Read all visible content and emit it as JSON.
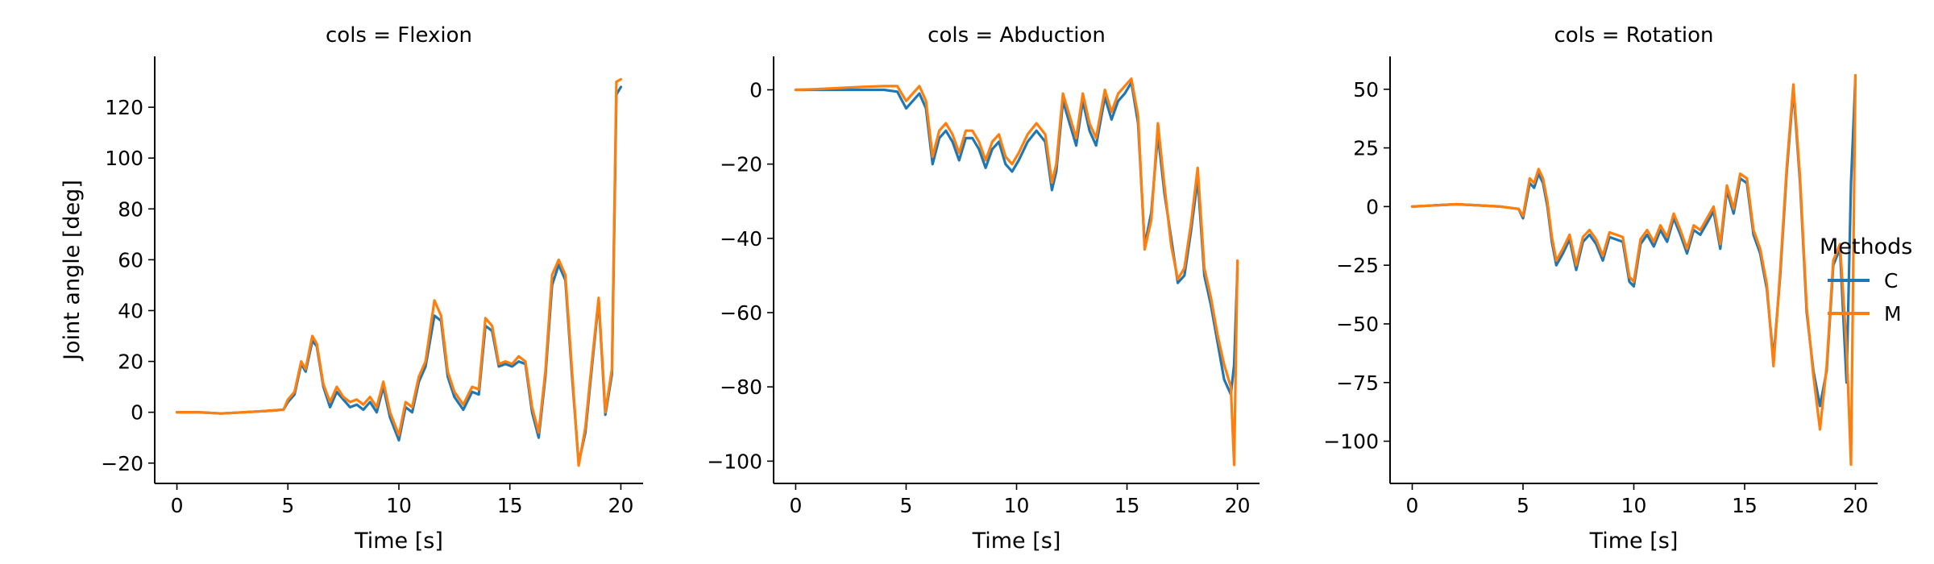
{
  "figure": {
    "legend_title": "Methods"
  },
  "chart_data": [
    {
      "type": "line",
      "title": "cols = Flexion",
      "xlabel": "Time [s]",
      "ylabel": "Joint angle [deg]",
      "xlim": [
        -1,
        21
      ],
      "ylim": [
        -28,
        140
      ],
      "xticks": [
        0,
        5,
        10,
        15,
        20
      ],
      "yticks": [
        -20,
        0,
        20,
        40,
        60,
        80,
        100,
        120
      ],
      "grid": false,
      "series": [
        {
          "name": "C",
          "color": "#1f77b4",
          "x": [
            0,
            1,
            2,
            3,
            4,
            4.8,
            5.0,
            5.3,
            5.6,
            5.8,
            6.1,
            6.3,
            6.6,
            6.9,
            7.2,
            7.5,
            7.8,
            8.1,
            8.4,
            8.7,
            9.0,
            9.3,
            9.6,
            10.0,
            10.3,
            10.6,
            10.9,
            11.2,
            11.6,
            11.9,
            12.2,
            12.5,
            12.9,
            13.3,
            13.6,
            13.9,
            14.2,
            14.5,
            14.8,
            15.1,
            15.4,
            15.7,
            16.0,
            16.3,
            16.6,
            16.9,
            17.2,
            17.5,
            17.8,
            18.1,
            18.4,
            18.7,
            19.0,
            19.3,
            19.6,
            19.8,
            20.0
          ],
          "values": [
            0,
            0,
            -0.5,
            0,
            0.5,
            1,
            4,
            7,
            19,
            16,
            28,
            26,
            10,
            2,
            8,
            5,
            2,
            3,
            1,
            4,
            0,
            10,
            -2,
            -11,
            2,
            0,
            12,
            18,
            38,
            36,
            14,
            6,
            1,
            8,
            7,
            34,
            32,
            18,
            19,
            18,
            20,
            19,
            0,
            -10,
            14,
            50,
            58,
            52,
            14,
            -20,
            -8,
            18,
            44,
            -1,
            15,
            125,
            128
          ]
        },
        {
          "name": "M",
          "color": "#ff7f0e",
          "x": [
            0,
            1,
            2,
            3,
            4,
            4.8,
            5.0,
            5.3,
            5.6,
            5.8,
            6.1,
            6.3,
            6.6,
            6.9,
            7.2,
            7.5,
            7.8,
            8.1,
            8.4,
            8.7,
            9.0,
            9.3,
            9.6,
            10.0,
            10.3,
            10.6,
            10.9,
            11.2,
            11.6,
            11.9,
            12.2,
            12.5,
            12.9,
            13.3,
            13.6,
            13.9,
            14.2,
            14.5,
            14.8,
            15.1,
            15.4,
            15.7,
            16.0,
            16.3,
            16.6,
            16.9,
            17.2,
            17.5,
            17.8,
            18.1,
            18.4,
            18.7,
            19.0,
            19.3,
            19.6,
            19.8,
            20.0
          ],
          "values": [
            0,
            0,
            -0.5,
            0,
            0.5,
            1,
            5,
            8,
            20,
            17,
            30,
            27,
            11,
            4,
            10,
            6,
            4,
            5,
            3,
            6,
            2,
            12,
            0,
            -9,
            4,
            2,
            14,
            20,
            44,
            38,
            16,
            8,
            3,
            10,
            9,
            37,
            34,
            19,
            20,
            19,
            22,
            20,
            2,
            -8,
            16,
            54,
            60,
            54,
            16,
            -21,
            -6,
            20,
            45,
            0,
            17,
            130,
            131
          ]
        }
      ]
    },
    {
      "type": "line",
      "title": "cols = Abduction",
      "xlabel": "Time [s]",
      "ylabel": "",
      "xlim": [
        -1,
        21
      ],
      "ylim": [
        -106,
        9
      ],
      "xticks": [
        0,
        5,
        10,
        15,
        20
      ],
      "yticks": [
        -100,
        -80,
        -60,
        -40,
        -20,
        0
      ],
      "grid": false,
      "series": [
        {
          "name": "C",
          "color": "#1f77b4",
          "x": [
            0,
            1,
            2,
            3,
            4,
            4.6,
            5.0,
            5.3,
            5.6,
            5.9,
            6.2,
            6.5,
            6.8,
            7.1,
            7.4,
            7.7,
            8.0,
            8.3,
            8.6,
            8.9,
            9.2,
            9.5,
            9.8,
            10.1,
            10.5,
            10.9,
            11.3,
            11.6,
            11.8,
            12.1,
            12.4,
            12.7,
            13.0,
            13.3,
            13.6,
            14.0,
            14.3,
            14.6,
            14.9,
            15.2,
            15.5,
            15.8,
            16.1,
            16.4,
            16.7,
            17.0,
            17.3,
            17.6,
            17.9,
            18.2,
            18.5,
            18.8,
            19.1,
            19.4,
            19.7,
            19.85,
            20.0
          ],
          "values": [
            0,
            0,
            0,
            0,
            0,
            -0.5,
            -5,
            -3,
            -1,
            -5,
            -20,
            -13,
            -11,
            -14,
            -19,
            -13,
            -13,
            -16,
            -21,
            -16,
            -14,
            -20,
            -22,
            -19,
            -14,
            -11,
            -14,
            -27,
            -22,
            -3,
            -9,
            -15,
            -3,
            -11,
            -15,
            -2,
            -8,
            -3,
            -1,
            2,
            -9,
            -42,
            -33,
            -12,
            -28,
            -40,
            -52,
            -50,
            -38,
            -24,
            -50,
            -58,
            -68,
            -78,
            -82,
            -74,
            -48
          ]
        },
        {
          "name": "M",
          "color": "#ff7f0e",
          "x": [
            0,
            1,
            2,
            3,
            4,
            4.6,
            5.0,
            5.3,
            5.6,
            5.9,
            6.2,
            6.5,
            6.8,
            7.1,
            7.4,
            7.7,
            8.0,
            8.3,
            8.6,
            8.9,
            9.2,
            9.5,
            9.8,
            10.1,
            10.5,
            10.9,
            11.3,
            11.6,
            11.8,
            12.1,
            12.4,
            12.7,
            13.0,
            13.3,
            13.6,
            14.0,
            14.3,
            14.6,
            14.9,
            15.2,
            15.5,
            15.8,
            16.1,
            16.4,
            16.7,
            17.0,
            17.3,
            17.6,
            17.9,
            18.2,
            18.5,
            18.8,
            19.1,
            19.4,
            19.7,
            19.85,
            20.0
          ],
          "values": [
            0,
            0.2,
            0.5,
            0.8,
            1,
            1,
            -3,
            -1,
            1,
            -3,
            -18,
            -11,
            -9,
            -12,
            -17,
            -11,
            -11,
            -14,
            -19,
            -14,
            -12,
            -18,
            -20,
            -17,
            -12,
            -9,
            -12,
            -25,
            -20,
            -1,
            -7,
            -13,
            -1,
            -9,
            -13,
            0,
            -6,
            -1,
            1,
            3,
            -7,
            -43,
            -35,
            -9,
            -26,
            -42,
            -51,
            -48,
            -36,
            -21,
            -48,
            -56,
            -66,
            -74,
            -80,
            -101,
            -46
          ]
        }
      ]
    },
    {
      "type": "line",
      "title": "cols = Rotation",
      "xlabel": "Time [s]",
      "ylabel": "",
      "xlim": [
        -1,
        21
      ],
      "ylim": [
        -118,
        64
      ],
      "xticks": [
        0,
        5,
        10,
        15,
        20
      ],
      "yticks": [
        -100,
        -75,
        -50,
        -25,
        0,
        25,
        50
      ],
      "grid": false,
      "series": [
        {
          "name": "C",
          "color": "#1f77b4",
          "x": [
            0,
            1,
            2,
            3,
            4,
            4.8,
            5.0,
            5.3,
            5.5,
            5.7,
            5.9,
            6.1,
            6.3,
            6.5,
            6.8,
            7.1,
            7.4,
            7.7,
            8.0,
            8.3,
            8.6,
            8.9,
            9.2,
            9.5,
            9.8,
            10.0,
            10.3,
            10.6,
            10.9,
            11.2,
            11.5,
            11.8,
            12.1,
            12.4,
            12.7,
            13.0,
            13.3,
            13.6,
            13.9,
            14.2,
            14.5,
            14.8,
            15.1,
            15.4,
            15.7,
            16.0,
            16.3,
            16.6,
            16.9,
            17.2,
            17.5,
            17.8,
            18.1,
            18.4,
            18.7,
            19.0,
            19.3,
            19.6,
            19.8,
            20.0
          ],
          "values": [
            0,
            0.5,
            1,
            0.5,
            0,
            -1,
            -5,
            10,
            8,
            14,
            10,
            0,
            -15,
            -25,
            -20,
            -14,
            -27,
            -15,
            -12,
            -16,
            -23,
            -13,
            -14,
            -15,
            -32,
            -34,
            -16,
            -12,
            -17,
            -10,
            -15,
            -5,
            -12,
            -20,
            -10,
            -12,
            -7,
            -2,
            -18,
            7,
            -3,
            12,
            10,
            -12,
            -20,
            -35,
            -65,
            -30,
            15,
            50,
            10,
            -45,
            -70,
            -85,
            -70,
            -25,
            -18,
            -75,
            10,
            55
          ]
        },
        {
          "name": "M",
          "color": "#ff7f0e",
          "x": [
            0,
            1,
            2,
            3,
            4,
            4.8,
            5.0,
            5.3,
            5.5,
            5.7,
            5.9,
            6.1,
            6.3,
            6.5,
            6.8,
            7.1,
            7.4,
            7.7,
            8.0,
            8.3,
            8.6,
            8.9,
            9.2,
            9.5,
            9.8,
            10.0,
            10.3,
            10.6,
            10.9,
            11.2,
            11.5,
            11.8,
            12.1,
            12.4,
            12.7,
            13.0,
            13.3,
            13.6,
            13.9,
            14.2,
            14.5,
            14.8,
            15.1,
            15.4,
            15.7,
            16.0,
            16.3,
            16.6,
            16.9,
            17.2,
            17.5,
            17.8,
            18.1,
            18.4,
            18.7,
            19.0,
            19.3,
            19.6,
            19.8,
            20.0
          ],
          "values": [
            0,
            0.5,
            1,
            0.5,
            0,
            -1,
            -4,
            12,
            10,
            16,
            12,
            2,
            -13,
            -23,
            -18,
            -12,
            -25,
            -13,
            -10,
            -14,
            -21,
            -11,
            -12,
            -13,
            -30,
            -32,
            -14,
            -10,
            -15,
            -8,
            -13,
            -3,
            -10,
            -18,
            -8,
            -10,
            -5,
            0,
            -16,
            9,
            -1,
            14,
            12,
            -10,
            -18,
            -33,
            -68,
            -28,
            17,
            52,
            12,
            -43,
            -72,
            -95,
            -68,
            -23,
            -16,
            -60,
            -110,
            56
          ]
        }
      ]
    }
  ]
}
